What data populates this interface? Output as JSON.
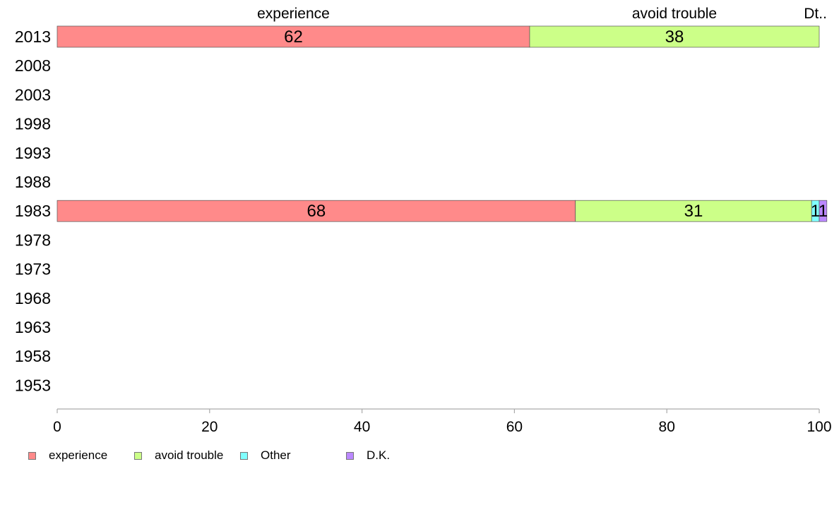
{
  "chart_data": {
    "type": "bar",
    "orientation": "horizontal",
    "stacked": true,
    "categories": [
      "2013",
      "2008",
      "2003",
      "1998",
      "1993",
      "1988",
      "1983",
      "1978",
      "1973",
      "1968",
      "1963",
      "1958",
      "1953"
    ],
    "series": [
      {
        "name": "experience",
        "color": "#ff8a8a",
        "values": [
          62,
          null,
          null,
          null,
          null,
          null,
          68,
          null,
          null,
          null,
          null,
          null,
          null
        ]
      },
      {
        "name": "avoid trouble",
        "color": "#ccff88",
        "values": [
          38,
          null,
          null,
          null,
          null,
          null,
          31,
          null,
          null,
          null,
          null,
          null,
          null
        ]
      },
      {
        "name": "Other",
        "color": "#80ffff",
        "values": [
          0,
          null,
          null,
          null,
          null,
          null,
          1,
          null,
          null,
          null,
          null,
          null,
          null
        ]
      },
      {
        "name": "D.K.",
        "color": "#bb88ff",
        "values": [
          0,
          null,
          null,
          null,
          null,
          null,
          1,
          null,
          null,
          null,
          null,
          null,
          null
        ]
      }
    ],
    "top_labels": [
      "experience",
      "avoid trouble",
      "Dt.."
    ],
    "x_ticks": [
      "0",
      "20",
      "40",
      "60",
      "80",
      "100"
    ],
    "xlim": [
      0,
      100
    ],
    "grid": false,
    "legend_position": "bottom-left"
  }
}
